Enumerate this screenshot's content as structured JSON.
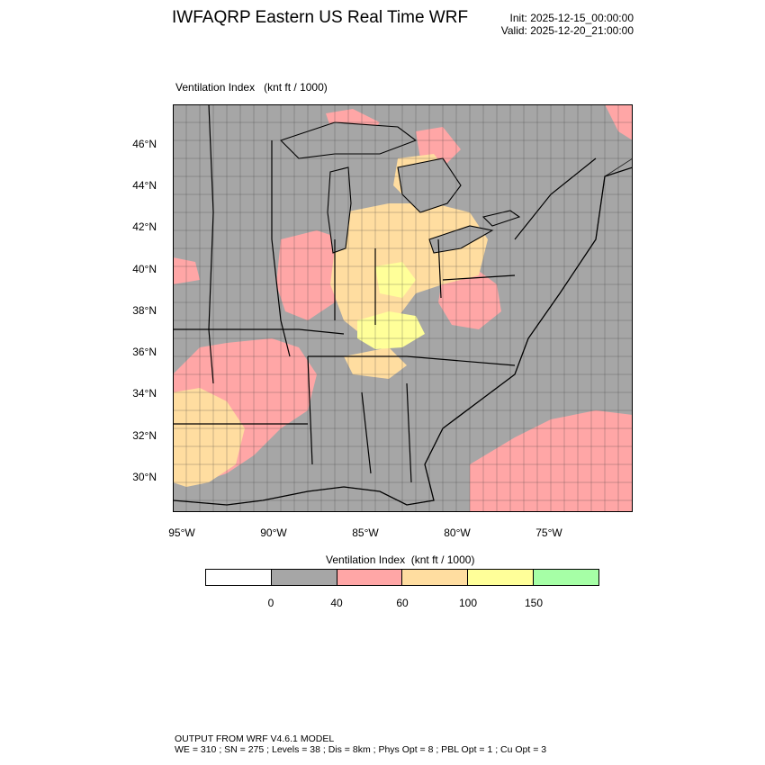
{
  "header": {
    "title": "IWFAQRP Eastern US Real Time WRF",
    "init": "Init: 2025-12-15_00:00:00",
    "valid": "Valid: 2025-12-20_21:00:00"
  },
  "map": {
    "subtitle": "Ventilation Index   (knt ft / 1000)",
    "lat_labels": [
      "46°N",
      "44°N",
      "42°N",
      "40°N",
      "38°N",
      "36°N",
      "34°N",
      "32°N",
      "30°N"
    ],
    "lon_labels": [
      "95°W",
      "90°W",
      "85°W",
      "80°W",
      "75°W"
    ]
  },
  "colorbar": {
    "title": "Ventilation Index  (knt ft / 1000)",
    "colors": [
      "#ffffff",
      "#a6a6a6",
      "#ffa6a6",
      "#ffdda0",
      "#ffff99",
      "#a6ffa6"
    ],
    "labels": [
      "0",
      "40",
      "60",
      "100",
      "150"
    ]
  },
  "footer": {
    "line1": "OUTPUT FROM WRF V4.6.1 MODEL",
    "line2": "WE = 310 ; SN = 275 ; Levels = 38 ; Dis = 8km ; Phys Opt = 8 ; PBL Opt = 1 ; Cu Opt = 3"
  }
}
